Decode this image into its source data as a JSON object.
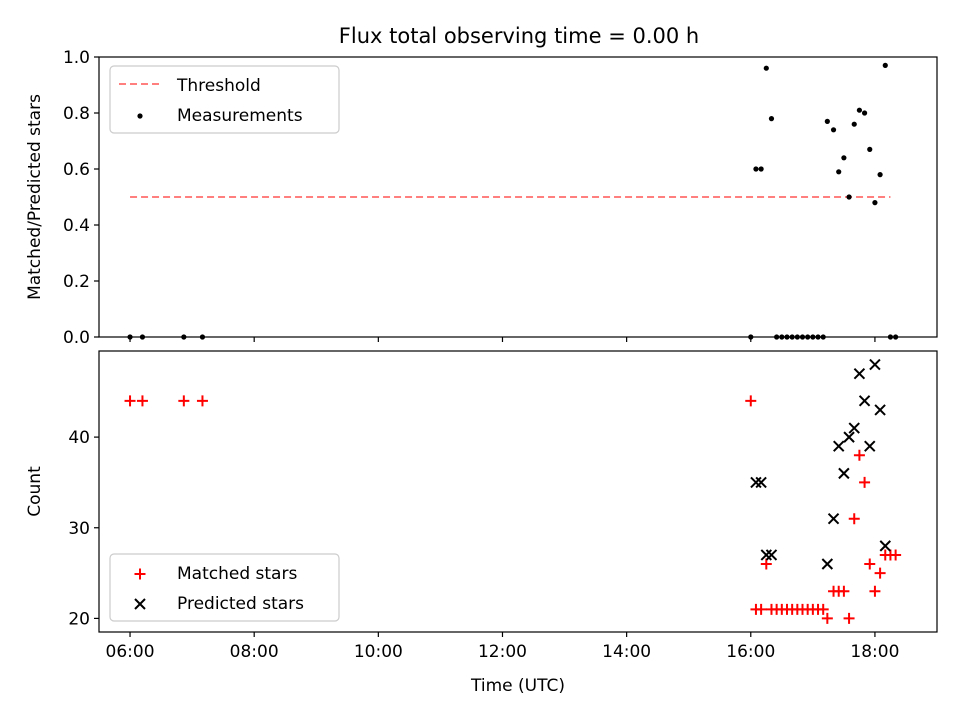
{
  "chart_data": [
    {
      "type": "scatter",
      "title": "Flux total observing time = 0.00 h",
      "xlabel": "",
      "ylabel": "Matched/Predicted stars",
      "xlim": [
        "05:30",
        "19:00"
      ],
      "ylim": [
        0,
        1.0
      ],
      "yticks": [
        0.0,
        0.2,
        0.4,
        0.6,
        0.8,
        1.0
      ],
      "ytick_labels": [
        "0.0",
        "0.2",
        "0.4",
        "0.6",
        "0.8",
        "1.0"
      ],
      "xticks": [
        "06:00",
        "08:00",
        "10:00",
        "12:00",
        "14:00",
        "16:00",
        "18:00"
      ],
      "xtick_labels_visible": false,
      "grid": false,
      "legend": {
        "position": "top-left",
        "entries": [
          "Threshold",
          "Measurements"
        ]
      },
      "series": [
        {
          "name": "Threshold",
          "style": "dashed-line",
          "color": "#ff7f7f",
          "points": [
            {
              "x": "06:00",
              "y": 0.5
            },
            {
              "x": "18:15",
              "y": 0.5
            }
          ]
        },
        {
          "name": "Measurements",
          "style": "dot",
          "color": "#000000",
          "points": [
            {
              "x": "06:00",
              "y": 0.0
            },
            {
              "x": "06:12",
              "y": 0.0
            },
            {
              "x": "06:52",
              "y": 0.0
            },
            {
              "x": "07:10",
              "y": 0.0
            },
            {
              "x": "16:00",
              "y": 0.0
            },
            {
              "x": "16:05",
              "y": 0.6
            },
            {
              "x": "16:10",
              "y": 0.6
            },
            {
              "x": "16:15",
              "y": 0.96
            },
            {
              "x": "16:20",
              "y": 0.78
            },
            {
              "x": "16:25",
              "y": 0.0
            },
            {
              "x": "16:30",
              "y": 0.0
            },
            {
              "x": "16:35",
              "y": 0.0
            },
            {
              "x": "16:40",
              "y": 0.0
            },
            {
              "x": "16:45",
              "y": 0.0
            },
            {
              "x": "16:50",
              "y": 0.0
            },
            {
              "x": "16:55",
              "y": 0.0
            },
            {
              "x": "17:00",
              "y": 0.0
            },
            {
              "x": "17:05",
              "y": 0.0
            },
            {
              "x": "17:10",
              "y": 0.0
            },
            {
              "x": "17:14",
              "y": 0.77
            },
            {
              "x": "17:20",
              "y": 0.74
            },
            {
              "x": "17:25",
              "y": 0.59
            },
            {
              "x": "17:30",
              "y": 0.64
            },
            {
              "x": "17:35",
              "y": 0.5
            },
            {
              "x": "17:40",
              "y": 0.76
            },
            {
              "x": "17:45",
              "y": 0.81
            },
            {
              "x": "17:50",
              "y": 0.8
            },
            {
              "x": "17:55",
              "y": 0.67
            },
            {
              "x": "18:00",
              "y": 0.48
            },
            {
              "x": "18:05",
              "y": 0.58
            },
            {
              "x": "18:10",
              "y": 0.97
            },
            {
              "x": "18:15",
              "y": 0.0
            },
            {
              "x": "18:20",
              "y": 0.0
            }
          ]
        }
      ]
    },
    {
      "type": "scatter",
      "title": "",
      "xlabel": "Time (UTC)",
      "ylabel": "Count",
      "xlim": [
        "05:30",
        "19:00"
      ],
      "ylim": [
        18.5,
        49.5
      ],
      "yticks": [
        20,
        30,
        40
      ],
      "ytick_labels": [
        "20",
        "30",
        "40"
      ],
      "xticks": [
        "06:00",
        "08:00",
        "10:00",
        "12:00",
        "14:00",
        "16:00",
        "18:00"
      ],
      "xtick_labels": [
        "06:00",
        "08:00",
        "10:00",
        "12:00",
        "14:00",
        "16:00",
        "18:00"
      ],
      "grid": false,
      "legend": {
        "position": "bottom-left",
        "entries": [
          "Matched stars",
          "Predicted stars"
        ]
      },
      "series": [
        {
          "name": "Matched stars",
          "marker": "plus",
          "color": "#ff0000",
          "points": [
            {
              "x": "06:00",
              "y": 44
            },
            {
              "x": "06:12",
              "y": 44
            },
            {
              "x": "06:52",
              "y": 44
            },
            {
              "x": "07:10",
              "y": 44
            },
            {
              "x": "16:00",
              "y": 44
            },
            {
              "x": "16:05",
              "y": 21
            },
            {
              "x": "16:10",
              "y": 21
            },
            {
              "x": "16:15",
              "y": 26
            },
            {
              "x": "16:20",
              "y": 21
            },
            {
              "x": "16:25",
              "y": 21
            },
            {
              "x": "16:30",
              "y": 21
            },
            {
              "x": "16:35",
              "y": 21
            },
            {
              "x": "16:40",
              "y": 21
            },
            {
              "x": "16:45",
              "y": 21
            },
            {
              "x": "16:50",
              "y": 21
            },
            {
              "x": "16:55",
              "y": 21
            },
            {
              "x": "17:00",
              "y": 21
            },
            {
              "x": "17:05",
              "y": 21
            },
            {
              "x": "17:10",
              "y": 21
            },
            {
              "x": "17:14",
              "y": 20
            },
            {
              "x": "17:20",
              "y": 23
            },
            {
              "x": "17:25",
              "y": 23
            },
            {
              "x": "17:30",
              "y": 23
            },
            {
              "x": "17:35",
              "y": 20
            },
            {
              "x": "17:40",
              "y": 31
            },
            {
              "x": "17:45",
              "y": 38
            },
            {
              "x": "17:50",
              "y": 35
            },
            {
              "x": "17:55",
              "y": 26
            },
            {
              "x": "18:00",
              "y": 23
            },
            {
              "x": "18:05",
              "y": 25
            },
            {
              "x": "18:10",
              "y": 27
            },
            {
              "x": "18:15",
              "y": 27
            },
            {
              "x": "18:20",
              "y": 27
            }
          ]
        },
        {
          "name": "Predicted stars",
          "marker": "x",
          "color": "#000000",
          "points": [
            {
              "x": "16:05",
              "y": 35
            },
            {
              "x": "16:10",
              "y": 35
            },
            {
              "x": "16:15",
              "y": 27
            },
            {
              "x": "16:20",
              "y": 27
            },
            {
              "x": "17:14",
              "y": 26
            },
            {
              "x": "17:20",
              "y": 31
            },
            {
              "x": "17:25",
              "y": 39
            },
            {
              "x": "17:30",
              "y": 36
            },
            {
              "x": "17:35",
              "y": 40
            },
            {
              "x": "17:40",
              "y": 41
            },
            {
              "x": "17:45",
              "y": 47
            },
            {
              "x": "17:50",
              "y": 44
            },
            {
              "x": "17:55",
              "y": 39
            },
            {
              "x": "18:00",
              "y": 48
            },
            {
              "x": "18:05",
              "y": 43
            },
            {
              "x": "18:10",
              "y": 28
            }
          ]
        }
      ]
    }
  ]
}
